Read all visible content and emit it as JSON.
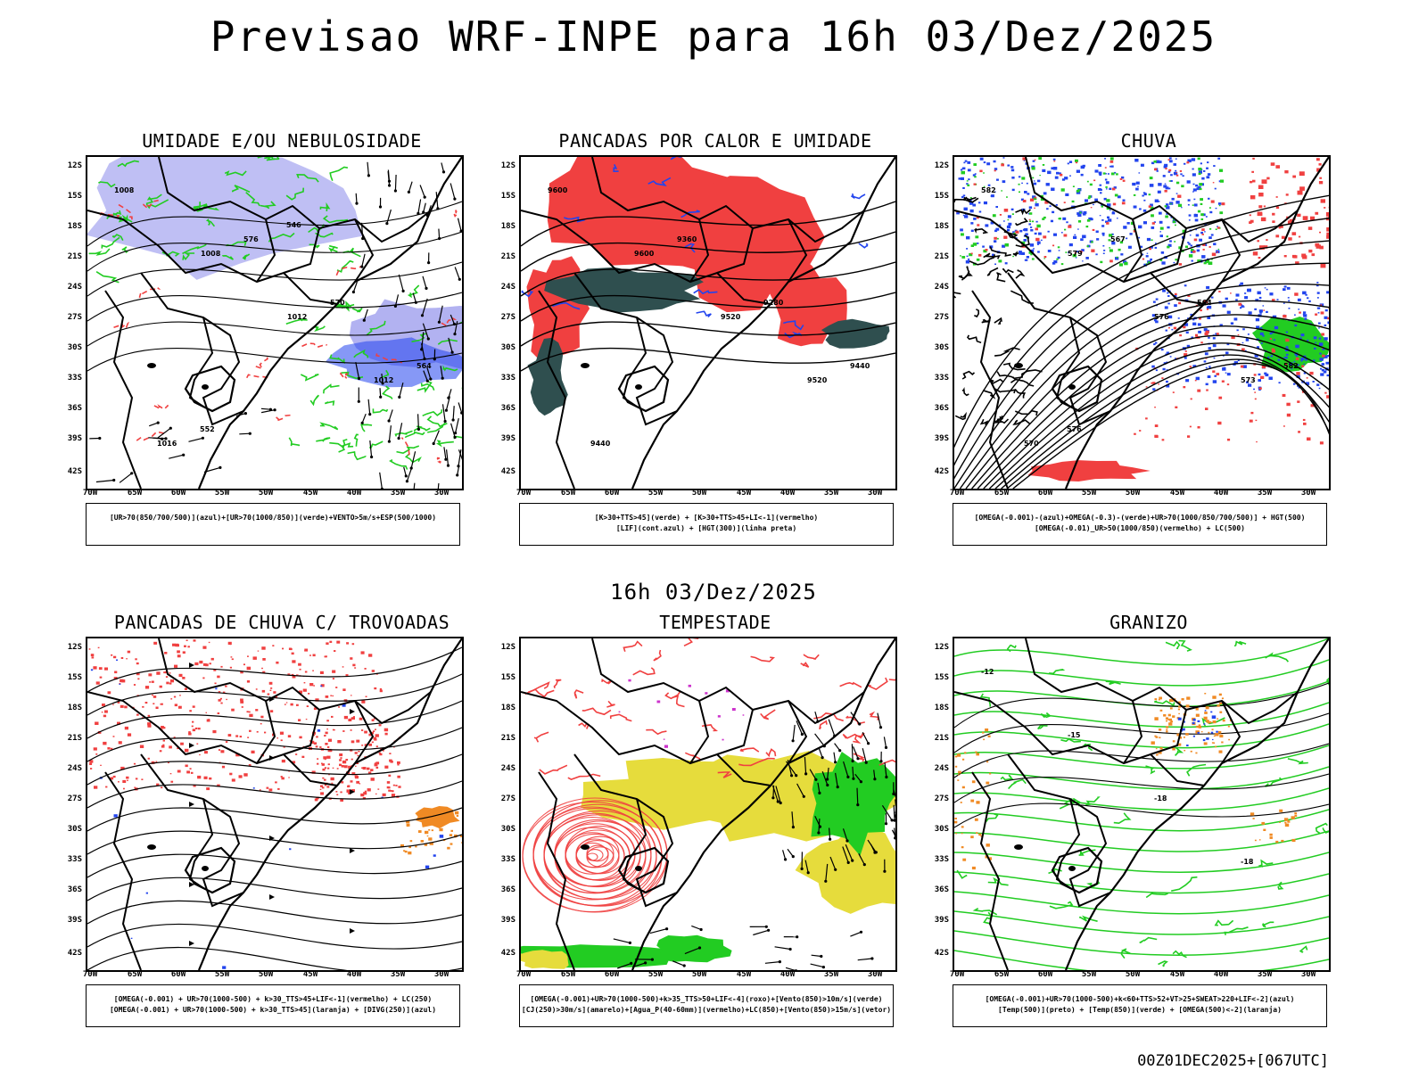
{
  "title": "Previsao WRF-INPE  para 16h 03/Dez/2025",
  "subtitle": "16h 03/Dez/2025",
  "footer": "00Z01DEC2025+[067UTC]",
  "axes": {
    "lat_labels": [
      "12S",
      "15S",
      "18S",
      "21S",
      "24S",
      "27S",
      "30S",
      "33S",
      "36S",
      "39S",
      "42S"
    ],
    "lon_labels": [
      "70W",
      "65W",
      "60W",
      "55W",
      "50W",
      "45W",
      "40W",
      "35W",
      "30W"
    ]
  },
  "panels": [
    {
      "title": "UMIDADE E/OU NEBULOSIDADE",
      "legend": [
        "[UR>70(850/700/500)](azul)+[UR>70(1000/850)](verde)+VENTO>5m/s+ESP(500/1000)"
      ],
      "contour_labels": [
        "1008",
        "1008",
        "1012",
        "1012",
        "1016",
        "576",
        "570",
        "564",
        "552",
        "546"
      ]
    },
    {
      "title": "PANCADAS POR CALOR E UMIDADE",
      "legend": [
        "[K>30+TTS>45](verde) + [K>30+TTS>45+LI<-1](vermelho)",
        "[LIF](cont.azul) + [HGT(300)](linha preta)"
      ],
      "contour_labels": [
        "9600",
        "9600",
        "9520",
        "9520",
        "9440",
        "9360",
        "9280",
        "9440"
      ]
    },
    {
      "title": "CHUVA",
      "legend": [
        "[OMEGA(-0.001)-(azul)+OMEGA(-0.3)-(verde)+UR>70(1000/850/700/500)] + HGT(500)",
        "[OMEGA(-0.01)_UR>50(1000/850)(vermelho) + LC(500)"
      ],
      "contour_labels": [
        "582",
        "579",
        "576",
        "573",
        "570",
        "567",
        "564",
        "582",
        "576"
      ]
    },
    {
      "title": "PANCADAS DE CHUVA C/ TROVOADAS",
      "legend": [
        "[OMEGA(-0.001) + UR>70(1000-500) + k>30_TTS>45+LIF<-1](vermelho) + LC(250)",
        "[OMEGA(-0.001) + UR>70(1000-500) + k>30_TTS>45](laranja) + [DIVG(250)](azul)"
      ],
      "contour_labels": []
    },
    {
      "title": "TEMPESTADE",
      "legend": [
        "[OMEGA(-0.001)+UR>70(1000-500)+k>35_TTS>50+LIF<-4](roxo)+[Vento(850)>10m/s](verde)",
        "[CJ(250)>30m/s](amarelo)+[Agua_P(40-60mm)](vermelho)+LC(850)+[Vento(850)>15m/s](vetor)"
      ],
      "contour_labels": []
    },
    {
      "title": "GRANIZO",
      "legend": [
        "[OMEGA(-0.001)+UR>70(1000-500)+k<60+TTS>52+VT>25+SWEAT>220+LIF<-2](azul)",
        "[Temp(500)](preto) + [Temp(850)](verde) + [OMEGA(500)<-2](laranja)"
      ],
      "contour_labels": [
        "-12",
        "-15",
        "-18",
        "-18"
      ]
    }
  ],
  "colors": {
    "humid_blue": "#aaaaf0",
    "green": "#22cc22",
    "red": "#f04040",
    "blue": "#2244ee",
    "dark_teal": "#2f4f4f",
    "yellow": "#e6dc3c",
    "orange": "#f08a24",
    "purple": "#cc33cc"
  }
}
